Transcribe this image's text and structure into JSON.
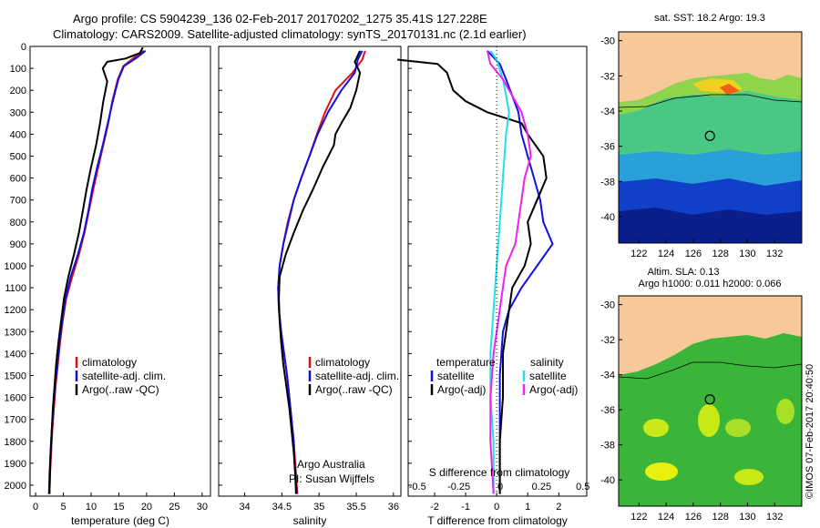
{
  "header": {
    "line1": "Argo profile: CS 5904239_136 02-Feb-2017 20170202_1275 35.41S 127.228E",
    "line2": "Climatology: CARS2009. Satellite-adjusted climatology: synTS_20170131.nc (2.1d earlier)"
  },
  "colors": {
    "climatology": "#e01010",
    "satellite": "#1010e0",
    "argo": "#000000",
    "sal_satellite": "#20e0f0",
    "sal_argo": "#f020f0",
    "land": "#f7c99a"
  },
  "depth_axis": {
    "ylim": [
      0,
      2050
    ],
    "ticks": [
      0,
      100,
      200,
      300,
      400,
      500,
      600,
      700,
      800,
      900,
      1000,
      1100,
      1200,
      1300,
      1400,
      1500,
      1600,
      1700,
      1800,
      1900,
      2000
    ]
  },
  "legend": {
    "climatology": "climatology",
    "satellite": "satellite-adj. clim.",
    "argo": "Argo(..raw -QC)"
  },
  "credit": {
    "line1": "Argo Australia",
    "line2": "PI: Susan Wijffels"
  },
  "diff_legend": {
    "temp_head": "temperature",
    "sal_head": "salinity",
    "satellite": "satellite",
    "argo": "Argo(-adj)"
  },
  "diff_labels": {
    "s_title": "S difference from climatology",
    "t_title": "T difference from climatology"
  },
  "map1": {
    "title": "sat. SST: 18.2 Argo: 19.3"
  },
  "map2": {
    "title1": "Altim. SLA: 0.13",
    "title2": "Argo h1000: 0.011 h2000: 0.066"
  },
  "stamp": "©IMOS 07-Feb-2017 20:40:50",
  "chart_data": [
    {
      "type": "line",
      "xlabel": "temperature (deg C)",
      "ylabel": "",
      "xlim": [
        -1,
        31.5
      ],
      "xticks": [
        0,
        5,
        10,
        15,
        20,
        25,
        30
      ],
      "series": [
        {
          "name": "climatology",
          "points": [
            [
              19.5,
              20
            ],
            [
              17.8,
              50
            ],
            [
              15.8,
              90
            ],
            [
              14.8,
              150
            ],
            [
              13.8,
              250
            ],
            [
              13.1,
              350
            ],
            [
              12.2,
              450
            ],
            [
              11.3,
              550
            ],
            [
              10.4,
              650
            ],
            [
              9.6,
              750
            ],
            [
              8.8,
              850
            ],
            [
              7.8,
              950
            ],
            [
              6.6,
              1050
            ],
            [
              5.5,
              1150
            ],
            [
              4.9,
              1250
            ],
            [
              4.4,
              1350
            ],
            [
              4.0,
              1450
            ],
            [
              3.6,
              1550
            ],
            [
              3.3,
              1650
            ],
            [
              3.0,
              1750
            ],
            [
              2.8,
              1850
            ],
            [
              2.6,
              1950
            ],
            [
              2.5,
              2040
            ]
          ]
        },
        {
          "name": "satellite-adj. clim.",
          "points": [
            [
              19.8,
              20
            ],
            [
              18.3,
              50
            ],
            [
              15.9,
              90
            ],
            [
              14.9,
              150
            ],
            [
              13.9,
              250
            ],
            [
              13.0,
              350
            ],
            [
              12.1,
              450
            ],
            [
              11.1,
              550
            ],
            [
              10.2,
              650
            ],
            [
              9.5,
              750
            ],
            [
              8.7,
              850
            ],
            [
              7.6,
              950
            ],
            [
              6.3,
              1050
            ],
            [
              5.4,
              1150
            ],
            [
              4.8,
              1250
            ],
            [
              4.3,
              1350
            ],
            [
              3.9,
              1450
            ],
            [
              3.5,
              1550
            ],
            [
              3.2,
              1650
            ],
            [
              2.9,
              1750
            ],
            [
              2.7,
              1850
            ],
            [
              2.5,
              1950
            ],
            [
              2.4,
              2040
            ]
          ]
        },
        {
          "name": "Argo(..raw -QC)",
          "points": [
            [
              19.3,
              5
            ],
            [
              18.8,
              30
            ],
            [
              16.2,
              55
            ],
            [
              12.9,
              70
            ],
            [
              12.1,
              100
            ],
            [
              12.9,
              160
            ],
            [
              12.2,
              250
            ],
            [
              11.6,
              350
            ],
            [
              10.9,
              450
            ],
            [
              10.0,
              550
            ],
            [
              9.2,
              650
            ],
            [
              8.5,
              750
            ],
            [
              7.8,
              850
            ],
            [
              6.9,
              950
            ],
            [
              5.9,
              1050
            ],
            [
              5.1,
              1150
            ],
            [
              4.6,
              1250
            ],
            [
              4.1,
              1350
            ],
            [
              3.7,
              1450
            ],
            [
              3.4,
              1550
            ],
            [
              3.1,
              1650
            ],
            [
              2.9,
              1750
            ],
            [
              2.7,
              1850
            ],
            [
              2.6,
              1950
            ],
            [
              2.5,
              2040
            ]
          ]
        }
      ]
    },
    {
      "type": "line",
      "xlabel": "salinity",
      "ylabel": "",
      "xlim": [
        33.65,
        36.1
      ],
      "xticks": [
        34,
        34.5,
        35,
        35.5,
        36
      ],
      "series": [
        {
          "name": "climatology",
          "points": [
            [
              35.62,
              20
            ],
            [
              35.58,
              60
            ],
            [
              35.45,
              120
            ],
            [
              35.22,
              200
            ],
            [
              35.08,
              300
            ],
            [
              34.97,
              400
            ],
            [
              34.87,
              500
            ],
            [
              34.76,
              600
            ],
            [
              34.66,
              700
            ],
            [
              34.58,
              800
            ],
            [
              34.52,
              900
            ],
            [
              34.47,
              1000
            ],
            [
              34.45,
              1100
            ],
            [
              34.46,
              1200
            ],
            [
              34.49,
              1300
            ],
            [
              34.53,
              1400
            ],
            [
              34.57,
              1500
            ],
            [
              34.6,
              1600
            ],
            [
              34.63,
              1700
            ],
            [
              34.66,
              1800
            ],
            [
              34.68,
              1900
            ],
            [
              34.7,
              2000
            ],
            [
              34.71,
              2040
            ]
          ]
        },
        {
          "name": "satellite-adj. clim.",
          "points": [
            [
              35.58,
              20
            ],
            [
              35.52,
              60
            ],
            [
              35.48,
              120
            ],
            [
              35.3,
              200
            ],
            [
              35.12,
              300
            ],
            [
              34.98,
              400
            ],
            [
              34.87,
              500
            ],
            [
              34.76,
              600
            ],
            [
              34.66,
              700
            ],
            [
              34.59,
              800
            ],
            [
              34.52,
              900
            ],
            [
              34.47,
              1000
            ],
            [
              34.45,
              1100
            ],
            [
              34.46,
              1200
            ],
            [
              34.49,
              1300
            ],
            [
              34.53,
              1400
            ],
            [
              34.57,
              1500
            ],
            [
              34.6,
              1600
            ],
            [
              34.63,
              1700
            ],
            [
              34.66,
              1800
            ],
            [
              34.67,
              1900
            ],
            [
              34.69,
              2000
            ],
            [
              34.7,
              2040
            ]
          ]
        },
        {
          "name": "Argo(..raw -QC)",
          "points": [
            [
              35.55,
              20
            ],
            [
              35.48,
              70
            ],
            [
              35.55,
              120
            ],
            [
              35.5,
              200
            ],
            [
              35.42,
              280
            ],
            [
              35.3,
              350
            ],
            [
              35.22,
              400
            ],
            [
              35.2,
              450
            ],
            [
              35.05,
              550
            ],
            [
              34.92,
              650
            ],
            [
              34.78,
              750
            ],
            [
              34.66,
              850
            ],
            [
              34.55,
              950
            ],
            [
              34.47,
              1050
            ],
            [
              34.46,
              1150
            ],
            [
              34.47,
              1250
            ],
            [
              34.49,
              1350
            ],
            [
              34.52,
              1450
            ],
            [
              34.56,
              1550
            ],
            [
              34.6,
              1650
            ],
            [
              34.63,
              1750
            ],
            [
              34.66,
              1850
            ],
            [
              34.68,
              1950
            ],
            [
              34.69,
              2040
            ]
          ]
        }
      ]
    },
    {
      "type": "line",
      "xlabel": "T difference from climatology",
      "xlabel_top": "S difference from climatology",
      "xlim": [
        -2.85,
        2.9
      ],
      "xticks": [
        -2,
        -1,
        0,
        1,
        2
      ],
      "xticks_top": [
        -0.5,
        -0.25,
        0,
        0.25,
        0.5
      ],
      "series": [
        {
          "name": "temperature satellite",
          "points": [
            [
              -0.3,
              20
            ],
            [
              -0.1,
              50
            ],
            [
              0.1,
              80
            ],
            [
              0.3,
              150
            ],
            [
              0.7,
              300
            ],
            [
              0.8,
              400
            ],
            [
              1.0,
              500
            ],
            [
              1.2,
              600
            ],
            [
              1.4,
              700
            ],
            [
              1.5,
              800
            ],
            [
              1.8,
              900
            ],
            [
              1.3,
              1000
            ],
            [
              0.8,
              1100
            ],
            [
              0.4,
              1200
            ],
            [
              0.2,
              1300
            ],
            [
              0.1,
              1500
            ],
            [
              0.1,
              1700
            ],
            [
              0.1,
              2040
            ]
          ]
        },
        {
          "name": "temperature Argo(-adj)",
          "points": [
            [
              -3.2,
              60
            ],
            [
              -1.9,
              80
            ],
            [
              -1.6,
              120
            ],
            [
              -1.4,
              200
            ],
            [
              -1.0,
              250
            ],
            [
              -0.3,
              300
            ],
            [
              0.8,
              350
            ],
            [
              1.0,
              400
            ],
            [
              1.5,
              500
            ],
            [
              1.6,
              600
            ],
            [
              1.3,
              700
            ],
            [
              1.0,
              800
            ],
            [
              1.1,
              900
            ],
            [
              0.9,
              1000
            ],
            [
              0.5,
              1100
            ],
            [
              0.4,
              1200
            ],
            [
              0.3,
              1300
            ],
            [
              0.2,
              1400
            ],
            [
              0.2,
              1600
            ],
            [
              0.1,
              1800
            ],
            [
              0.1,
              2040
            ]
          ]
        },
        {
          "name": "salinity satellite",
          "points": [
            [
              -0.2,
              20
            ],
            [
              0.0,
              60
            ],
            [
              0.2,
              150
            ],
            [
              0.4,
              300
            ],
            [
              0.3,
              400
            ],
            [
              0.2,
              600
            ],
            [
              0.1,
              800
            ],
            [
              0.0,
              1000
            ],
            [
              -0.1,
              1200
            ],
            [
              -0.2,
              1400
            ],
            [
              -0.2,
              1600
            ],
            [
              -0.1,
              1800
            ],
            [
              -0.1,
              2040
            ]
          ]
        },
        {
          "name": "salinity Argo(-adj)",
          "points": [
            [
              -0.3,
              20
            ],
            [
              -0.2,
              80
            ],
            [
              0.2,
              150
            ],
            [
              0.8,
              300
            ],
            [
              1.0,
              400
            ],
            [
              1.1,
              500
            ],
            [
              0.9,
              600
            ],
            [
              0.8,
              700
            ],
            [
              0.7,
              800
            ],
            [
              0.6,
              900
            ],
            [
              0.3,
              1000
            ],
            [
              0.1,
              1200
            ],
            [
              -0.1,
              1400
            ],
            [
              -0.2,
              1600
            ],
            [
              -0.2,
              1800
            ],
            [
              -0.1,
              2040
            ]
          ]
        }
      ]
    },
    {
      "type": "heatmap",
      "title": "sat. SST: 18.2 Argo: 19.3",
      "xlim": [
        120.5,
        134
      ],
      "ylim": [
        -41.5,
        -29.5
      ],
      "xticks": [
        122,
        124,
        126,
        128,
        130,
        132
      ],
      "yticks": [
        -30,
        -32,
        -34,
        -36,
        -38,
        -40
      ],
      "marker": [
        127.228,
        -35.41
      ]
    },
    {
      "type": "heatmap",
      "title": "Altim. SLA: 0.13",
      "xlim": [
        120.5,
        134
      ],
      "ylim": [
        -41.5,
        -29.5
      ],
      "xticks": [
        122,
        124,
        126,
        128,
        130,
        132
      ],
      "yticks": [
        -30,
        -32,
        -34,
        -36,
        -38,
        -40
      ],
      "marker": [
        127.228,
        -35.41
      ]
    }
  ]
}
